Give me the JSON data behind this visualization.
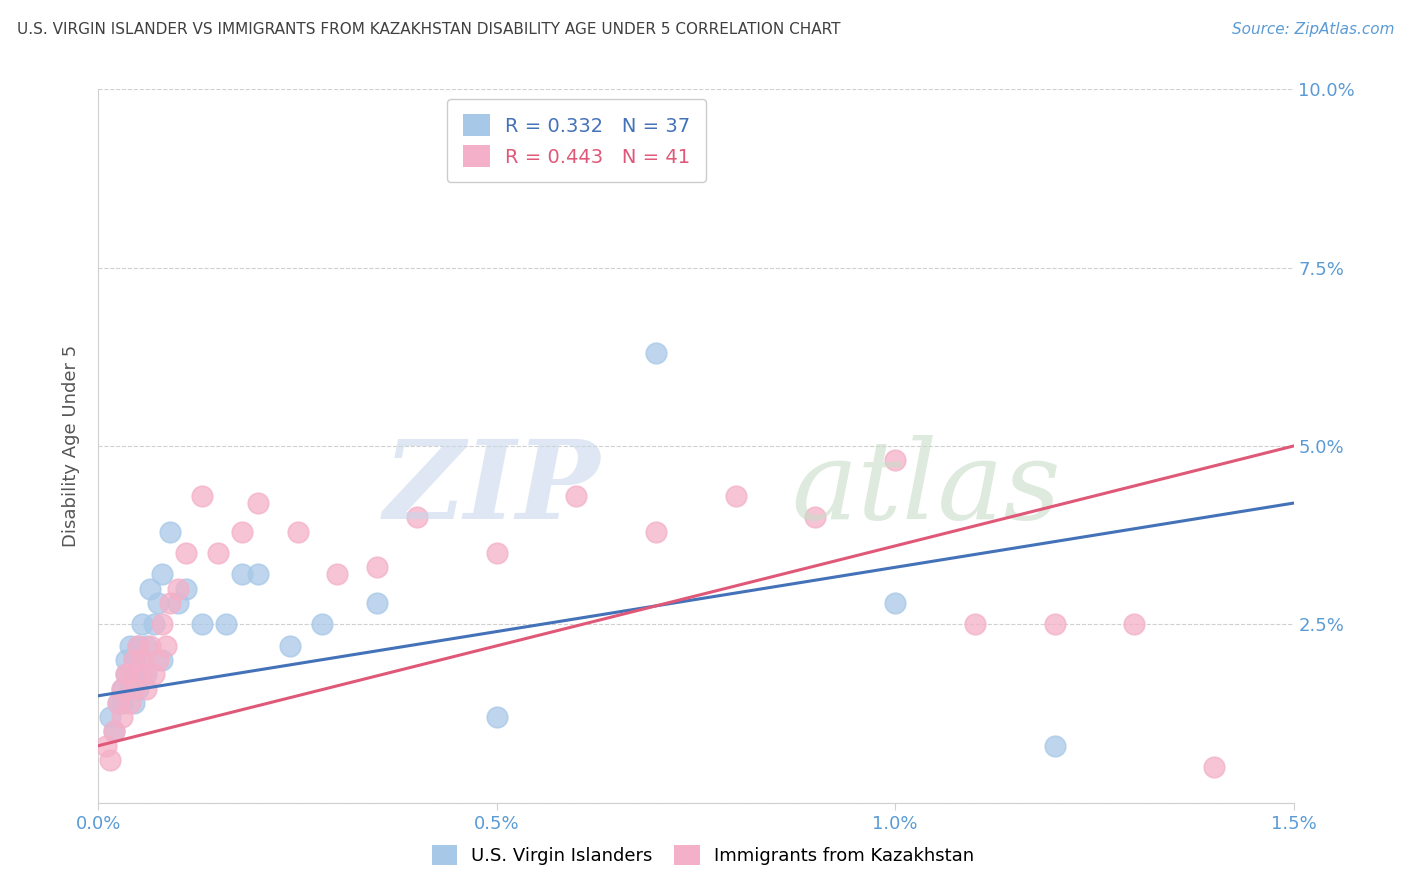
{
  "title": "U.S. VIRGIN ISLANDER VS IMMIGRANTS FROM KAZAKHSTAN DISABILITY AGE UNDER 5 CORRELATION CHART",
  "source": "Source: ZipAtlas.com",
  "ylabel": "Disability Age Under 5",
  "xlabel": "",
  "xlim": [
    0.0,
    0.015
  ],
  "ylim": [
    0.0,
    0.1
  ],
  "xticks": [
    0.0,
    0.005,
    0.01,
    0.015
  ],
  "xtick_labels": [
    "0.0%",
    "0.5%",
    "1.0%",
    "1.5%"
  ],
  "yticks": [
    0.0,
    0.025,
    0.05,
    0.075,
    0.1
  ],
  "ytick_labels": [
    "",
    "2.5%",
    "5.0%",
    "7.5%",
    "10.0%"
  ],
  "blue_label": "U.S. Virgin Islanders",
  "pink_label": "Immigrants from Kazakhstan",
  "blue_R": "0.332",
  "blue_N": "37",
  "pink_R": "0.443",
  "pink_N": "41",
  "blue_color": "#a8c8e8",
  "pink_color": "#f4b0c8",
  "blue_line_color": "#4472b8",
  "pink_line_color": "#e05878",
  "axis_label_color": "#5b9bd5",
  "title_color": "#404040",
  "grid_color": "#d0d0d0",
  "background_color": "#ffffff",
  "blue_line_x0": 0.0,
  "blue_line_y0": 0.015,
  "blue_line_x1": 0.015,
  "blue_line_y1": 0.042,
  "pink_line_x0": 0.0,
  "pink_line_y0": 0.008,
  "pink_line_x1": 0.015,
  "pink_line_y1": 0.05,
  "blue_x": [
    0.00015,
    0.0002,
    0.00025,
    0.0003,
    0.0003,
    0.00035,
    0.00035,
    0.0004,
    0.0004,
    0.00045,
    0.00045,
    0.00045,
    0.0005,
    0.0005,
    0.00055,
    0.00055,
    0.0006,
    0.0006,
    0.00065,
    0.0007,
    0.00075,
    0.0008,
    0.0008,
    0.0009,
    0.001,
    0.0011,
    0.0013,
    0.0016,
    0.0018,
    0.002,
    0.0024,
    0.0028,
    0.0035,
    0.005,
    0.007,
    0.01,
    0.012
  ],
  "blue_y": [
    0.012,
    0.01,
    0.014,
    0.016,
    0.014,
    0.018,
    0.02,
    0.016,
    0.022,
    0.018,
    0.02,
    0.014,
    0.022,
    0.016,
    0.025,
    0.02,
    0.022,
    0.018,
    0.03,
    0.025,
    0.028,
    0.02,
    0.032,
    0.038,
    0.028,
    0.03,
    0.025,
    0.025,
    0.032,
    0.032,
    0.022,
    0.025,
    0.028,
    0.012,
    0.063,
    0.028,
    0.008
  ],
  "pink_x": [
    0.0001,
    0.00015,
    0.0002,
    0.00025,
    0.0003,
    0.0003,
    0.00035,
    0.0004,
    0.0004,
    0.00045,
    0.00045,
    0.0005,
    0.00055,
    0.00055,
    0.0006,
    0.00065,
    0.0007,
    0.00075,
    0.0008,
    0.00085,
    0.0009,
    0.001,
    0.0011,
    0.0013,
    0.0015,
    0.0018,
    0.002,
    0.0025,
    0.003,
    0.0035,
    0.004,
    0.005,
    0.006,
    0.007,
    0.008,
    0.009,
    0.01,
    0.011,
    0.012,
    0.013,
    0.014
  ],
  "pink_y": [
    0.008,
    0.006,
    0.01,
    0.014,
    0.012,
    0.016,
    0.018,
    0.014,
    0.018,
    0.016,
    0.02,
    0.022,
    0.018,
    0.02,
    0.016,
    0.022,
    0.018,
    0.02,
    0.025,
    0.022,
    0.028,
    0.03,
    0.035,
    0.043,
    0.035,
    0.038,
    0.042,
    0.038,
    0.032,
    0.033,
    0.04,
    0.035,
    0.043,
    0.038,
    0.043,
    0.04,
    0.048,
    0.025,
    0.025,
    0.025,
    0.005
  ]
}
